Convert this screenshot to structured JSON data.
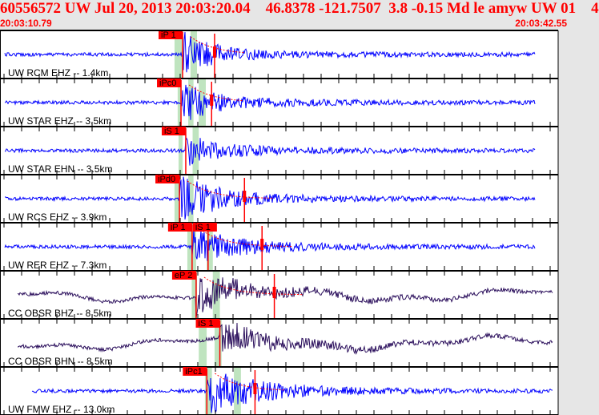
{
  "header": {
    "title": "60556572 UW Jul 20, 2013 20:03:20.04    46.8378 -121.7507  3.8 -0.15 Md le amyw UW 01    4",
    "start_time": "20:03:10.79",
    "end_time": "20:03:42.55"
  },
  "chart_data": {
    "type": "line",
    "x_range": [
      "20:03:10.79",
      "20:03:42.55"
    ],
    "colors": {
      "trace": "#0000ff",
      "trace_broadband": "#2b0f5c",
      "pick": "#ff0000",
      "window": "#bfe4bf",
      "coda": "#ff0000"
    },
    "traces": [
      {
        "label": "UW RCM EHZ -- 1.4km",
        "picks": [
          {
            "text": "iP 1",
            "time": "20:03:21.18"
          }
        ],
        "s_time": "20:03:23.00",
        "windows": [
          [
            "20:03:20.72",
            "20:03:21.18"
          ],
          [
            "20:03:21.63",
            "20:03:22.00"
          ]
        ],
        "color": "trace",
        "amp": 0.9
      },
      {
        "label": "UW STAR EHZ -- 3.5km",
        "picks": [
          {
            "text": "iPc0",
            "time": "20:03:21.09"
          }
        ],
        "s_time": "20:03:22.83",
        "windows": [
          [
            "20:03:20.90",
            "20:03:21.10"
          ],
          [
            "20:03:21.50",
            "20:03:21.80"
          ],
          [
            "20:03:22.10",
            "20:03:22.50"
          ]
        ],
        "color": "trace",
        "amp": 0.8
      },
      {
        "label": "UW STAR EHN -- 3.5km",
        "picks": [
          {
            "text": "iS 1",
            "time": "20:03:21.36"
          }
        ],
        "s_time": "",
        "windows": [
          [
            "20:03:20.95",
            "20:03:21.18"
          ],
          [
            "20:03:21.75",
            "20:03:22.10"
          ]
        ],
        "color": "trace",
        "amp": 0.55
      },
      {
        "label": "UW RCS EHZ -- 3.9km",
        "picks": [
          {
            "text": "iPd0",
            "time": "20:03:21.00"
          }
        ],
        "s_time": "20:03:24.70",
        "windows": [
          [
            "20:03:20.72",
            "20:03:21.00"
          ],
          [
            "20:03:21.50",
            "20:03:21.80"
          ]
        ],
        "color": "trace",
        "amp": 0.95
      },
      {
        "label": "UW RER EHZ -- 7.3km",
        "picks": [
          {
            "text": "iP 1",
            "time": "20:03:21.72"
          },
          {
            "text": "iS 1",
            "time": "20:03:22.63"
          }
        ],
        "s_time": "20:03:25.70",
        "windows": [
          [
            "20:03:21.45",
            "20:03:21.95"
          ],
          [
            "20:03:22.55",
            "20:03:22.90"
          ]
        ],
        "color": "trace",
        "amp": 0.7
      },
      {
        "label": "CC OBSR BHZ -- 8.5km",
        "picks": [
          {
            "text": "eP 2",
            "time": "20:03:21.95"
          }
        ],
        "s_time": "20:03:26.40",
        "windows": [
          [
            "20:03:21.70",
            "20:03:22.00"
          ],
          [
            "20:03:22.90",
            "20:03:23.30"
          ]
        ],
        "color": "trace_broadband",
        "amp": 0.7
      },
      {
        "label": "CC OBSR BHN -- 8.5km",
        "picks": [
          {
            "text": "iS 1",
            "time": "20:03:23.30"
          }
        ],
        "s_time": "",
        "windows": [
          [
            "20:03:22.10",
            "20:03:22.55"
          ],
          [
            "20:03:23.00",
            "20:03:23.40"
          ]
        ],
        "color": "trace_broadband",
        "amp": 0.55
      },
      {
        "label": "UW FMW EHZ -- 13.0km",
        "picks": [
          {
            "text": "iPc1",
            "time": "20:03:22.56"
          }
        ],
        "s_time": "20:03:25.30",
        "windows": [
          [
            "20:03:22.45",
            "20:03:22.85"
          ],
          [
            "20:03:24.10",
            "20:03:24.50"
          ]
        ],
        "color": "trace",
        "amp": 0.9
      }
    ]
  }
}
